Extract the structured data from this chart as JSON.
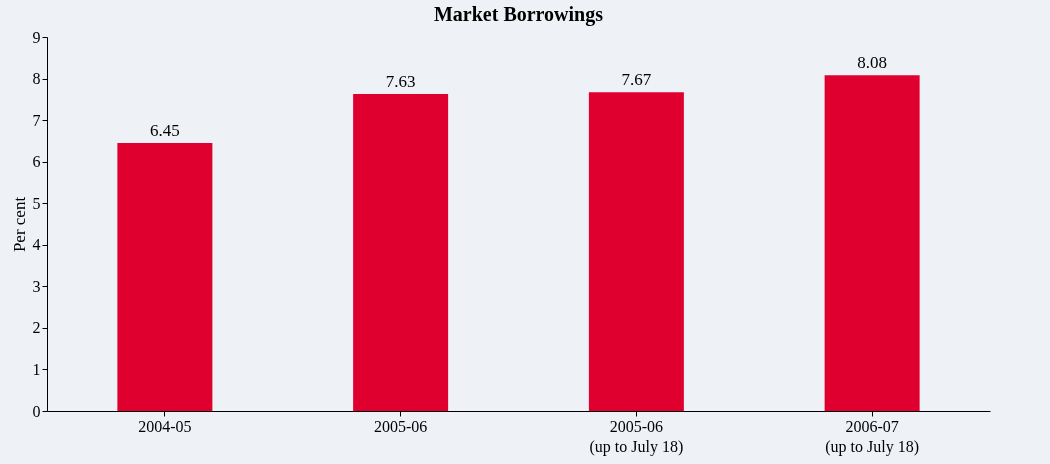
{
  "chart_data": {
    "type": "bar",
    "title": "Market Borrowings",
    "ylabel": "Per cent",
    "categories": [
      "2004-05",
      "2005-06",
      "2005-06\n(up to July 18)",
      "2006-07\n(up to July 18)"
    ],
    "values": [
      6.45,
      7.63,
      7.67,
      8.08
    ],
    "color": "#e0002f",
    "ylim": [
      0,
      9
    ],
    "yticks": [
      0,
      1,
      2,
      3,
      4,
      5,
      6,
      7,
      8,
      9
    ],
    "grid": false,
    "data_labels": true
  }
}
